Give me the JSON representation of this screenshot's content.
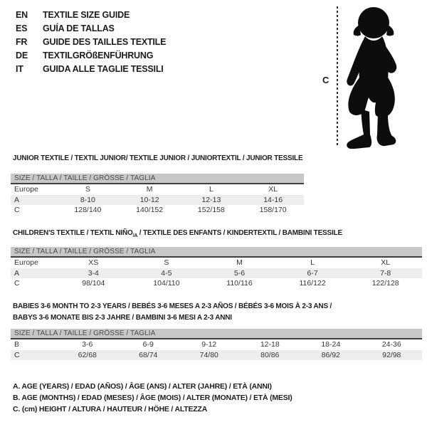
{
  "header": {
    "languages": [
      {
        "code": "EN",
        "label": "TEXTILE SIZE GUIDE"
      },
      {
        "code": "ES",
        "label": "GUÍA DE TALLAS"
      },
      {
        "code": "FR",
        "label": "GUIDE DES TAILLES TEXTILE"
      },
      {
        "code": "DE",
        "label": "TEXTILGRÖßENFÜHRUNG"
      },
      {
        "code": "IT",
        "label": "GUIDA ALLE TAGLIE TESSILI"
      }
    ],
    "figure": {
      "icon": "toddler-silhouette",
      "measure_label": "C"
    }
  },
  "tables": [
    {
      "id": "junior",
      "title_lines": [
        [
          {
            "text": "JUNIOR TEXTILE / TEXTIL JUNIOR/ TEXTILE JUNIOR / JUNIORTEXTIL / JUNIOR TESSILE",
            "sub": false
          }
        ]
      ],
      "size_header": "SIZE / TALLA / TAILLE / GRÖSSE / TAGLIA",
      "rows": [
        {
          "label": "Europe",
          "cells": [
            "S",
            "M",
            "L",
            "XL"
          ]
        },
        {
          "label": "A",
          "cells": [
            "8-10",
            "10-12",
            "12-13",
            "14-16"
          ]
        },
        {
          "label": "C",
          "cells": [
            "128/140",
            "140/152",
            "152/158",
            "158/170"
          ]
        }
      ]
    },
    {
      "id": "children",
      "title_lines": [
        [
          {
            "text": "CHILDREN'S TEXTILE / TEXTIL NIÑO",
            "sub": false
          },
          {
            "text": "/A",
            "sub": true
          },
          {
            "text": " / TEXTILE DES ENFANTS / KINDERTEXTIL / BAMBINI TESSILE",
            "sub": false
          }
        ]
      ],
      "size_header": "SIZE / TALLA / TAILLE / GRÖSSE / TAGLIA",
      "rows": [
        {
          "label": "Europe",
          "cells": [
            "XS",
            "S",
            "M",
            "L",
            "XL"
          ]
        },
        {
          "label": "A",
          "cells": [
            "3-4",
            "4-5",
            "5-6",
            "6-7",
            "7-8"
          ]
        },
        {
          "label": "C",
          "cells": [
            "98/104",
            "104/110",
            "110/116",
            "116/122",
            "122/128"
          ]
        }
      ]
    },
    {
      "id": "babies",
      "title_lines": [
        [
          {
            "text": "BABIES 3-6 MONTH TO 2-3 YEARS / BEBÉS 3-6 MESES A 2-3 AÑOS / BÉBÉS 3-6 MOIS À 2-3 ANS /",
            "sub": false
          }
        ],
        [
          {
            "text": "BABYS 3-6 MONATE BIS 2-3 JAHRE / BAMBINI 3-6 MESI A 2-3 ANNI",
            "sub": false
          }
        ]
      ],
      "size_header": "SIZE / TALLA / TAILLE / GRÖSSE / TAGLIA",
      "rows": [
        {
          "label": "B",
          "cells": [
            "3-6",
            "6-9",
            "9-12",
            "12-18",
            "18-24",
            "24-36"
          ]
        },
        {
          "label": "C",
          "cells": [
            "62/68",
            "68/74",
            "74/80",
            "80/86",
            "86/92",
            "92/98"
          ]
        }
      ]
    }
  ],
  "legend": {
    "lines": [
      "A. AGE (YEARS) / EDAD (AÑOS) / ÂGE (ANS) / ALTER (JAHRE) / ETÀ (ANNI)",
      "B. AGE (MONTHS) / EDAD (MESES) / ÂGE (MOIS) / ALTER (MONATE) / ETÀ (MESI)",
      "C. (cm) HEIGHT / ALTURA / HAUTEUR / HÖHE / ALTEZZA"
    ]
  },
  "colors": {
    "size_bar_bg": "#c7c7c7",
    "size_bar_text": "#4a4a4a",
    "row_stripe": "#ededed",
    "header_rule": "#3f3f3f",
    "text": "#1c1c1c",
    "table_text": "#363636",
    "silhouette": "#0d0d0d"
  }
}
